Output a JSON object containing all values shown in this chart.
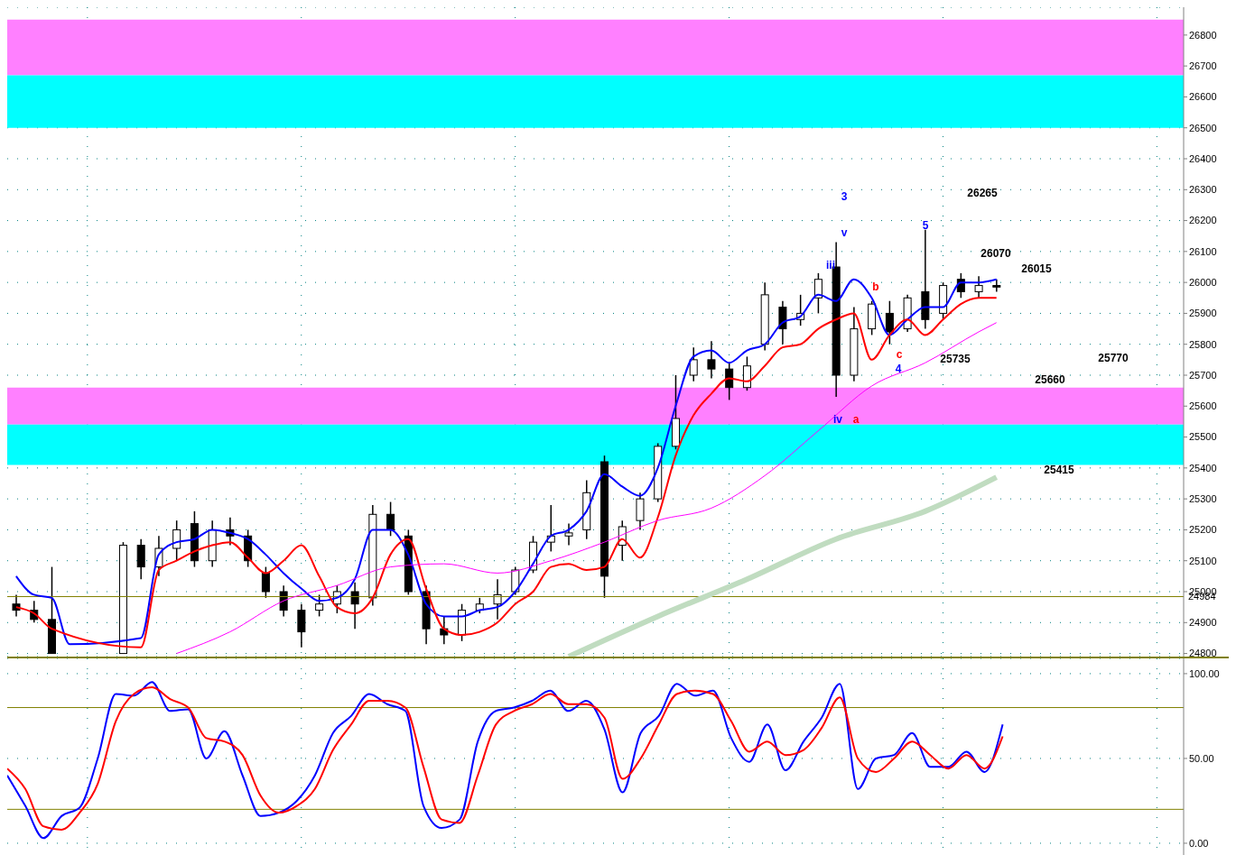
{
  "chart_data": [
    {
      "type": "candlestick",
      "categories": [
        null,
        null,
        null,
        null,
        null,
        null,
        null,
        null,
        null,
        null,
        null,
        null,
        null,
        null,
        null,
        null,
        null,
        null,
        null,
        null,
        null,
        null,
        null,
        null,
        null,
        null,
        null,
        null,
        null,
        null,
        null,
        null,
        null,
        null,
        null,
        null,
        null,
        null,
        null,
        null,
        null,
        null,
        null,
        null,
        null,
        null,
        null,
        null,
        null,
        null,
        null,
        null,
        null,
        null,
        null,
        null,
        null,
        null,
        null,
        null,
        null,
        null,
        null,
        null,
        null,
        null
      ],
      "ohlc": [
        [
          24960,
          24990,
          24920,
          24940
        ],
        [
          24940,
          24970,
          24900,
          24910
        ],
        [
          24910,
          25080,
          24800,
          24800
        ],
        null,
        null,
        null,
        [
          24800,
          25160,
          24800,
          25150
        ],
        [
          25150,
          25170,
          25040,
          25080
        ],
        [
          25080,
          25180,
          25050,
          25140
        ],
        [
          25140,
          25230,
          25100,
          25200
        ],
        [
          25220,
          25260,
          25080,
          25100
        ],
        [
          25100,
          25230,
          25080,
          25200
        ],
        [
          25200,
          25240,
          25150,
          25180
        ],
        [
          25180,
          25200,
          25080,
          25100
        ],
        [
          25060,
          25080,
          24980,
          25000
        ],
        [
          25000,
          25020,
          24920,
          24940
        ],
        [
          24940,
          24960,
          24820,
          24870
        ],
        [
          24940,
          24990,
          24920,
          24960
        ],
        [
          24960,
          25020,
          24930,
          25000
        ],
        [
          25000,
          25030,
          24880,
          24960
        ],
        [
          24980,
          25280,
          24955,
          25250
        ],
        [
          25250,
          25290,
          25180,
          25200
        ],
        [
          25180,
          25200,
          24990,
          25000
        ],
        [
          25000,
          25020,
          24830,
          24880
        ],
        [
          24880,
          24920,
          24830,
          24860
        ],
        [
          24860,
          24960,
          24840,
          24940
        ],
        [
          24940,
          24980,
          24930,
          24960
        ],
        [
          24960,
          25040,
          24910,
          24990
        ],
        [
          25000,
          25080,
          24990,
          25070
        ],
        [
          25070,
          25180,
          25060,
          25160
        ],
        [
          25160,
          25280,
          25130,
          25180
        ],
        [
          25180,
          25220,
          25150,
          25190
        ],
        [
          25200,
          25360,
          25170,
          25320
        ],
        [
          25420,
          25440,
          24980,
          25050
        ],
        [
          25150,
          25230,
          25100,
          25210
        ],
        [
          25230,
          25320,
          25200,
          25300
        ],
        [
          25300,
          25480,
          25290,
          25470
        ],
        [
          25470,
          25700,
          25460,
          25560
        ],
        [
          25700,
          25790,
          25680,
          25750
        ],
        [
          25750,
          25810,
          25690,
          25720
        ],
        [
          25720,
          25740,
          25620,
          25660
        ],
        [
          25660,
          25760,
          25650,
          25730
        ],
        [
          25800,
          26000,
          25780,
          25960
        ],
        [
          25920,
          25940,
          25800,
          25850
        ],
        [
          25880,
          25960,
          25860,
          25900
        ],
        [
          25950,
          26030,
          25900,
          26010
        ],
        [
          26050,
          26130,
          25630,
          25700
        ],
        [
          25700,
          25920,
          25680,
          25850
        ],
        [
          25850,
          25940,
          25830,
          25930
        ],
        [
          25900,
          25940,
          25800,
          25840
        ],
        [
          25850,
          25960,
          25840,
          25950
        ],
        [
          25970,
          26170,
          25850,
          25880
        ],
        [
          25900,
          26000,
          25880,
          25990
        ],
        [
          26010,
          26030,
          25950,
          25970
        ],
        [
          25970,
          26020,
          25950,
          25990
        ],
        [
          25990,
          26010,
          25970,
          25985
        ],
        null,
        null,
        null,
        null,
        null,
        null,
        null,
        null,
        null,
        null
      ],
      "series": [
        {
          "type": "line",
          "color": "#0000ff",
          "values": [
            25050,
            24990,
            24980,
            24830,
            null,
            null,
            null,
            24850,
            25120,
            25160,
            25170,
            25200,
            25190,
            25170,
            25120,
            25060,
            25010,
            24970,
            24980,
            25040,
            25200,
            25200,
            25120,
            24960,
            24920,
            24920,
            24940,
            24950,
            25000,
            25090,
            25180,
            25200,
            25260,
            25380,
            25340,
            25310,
            25400,
            25600,
            25760,
            25780,
            25740,
            25780,
            25800,
            25870,
            25890,
            25960,
            25940,
            26010,
            25950,
            25830,
            25880,
            25920,
            25920,
            26000,
            26000,
            26010,
            null,
            null,
            null,
            null,
            null,
            null,
            null,
            null,
            null,
            null
          ]
        },
        {
          "type": "line",
          "color": "#ff0000",
          "values": [
            24950,
            24930,
            24880,
            null,
            null,
            null,
            null,
            24820,
            25070,
            25100,
            25130,
            25150,
            25160,
            25110,
            25060,
            25100,
            25150,
            25050,
            24950,
            24930,
            24980,
            25120,
            25170,
            25010,
            24880,
            24860,
            24870,
            24900,
            24960,
            25000,
            25080,
            25090,
            25070,
            25080,
            25170,
            25110,
            25240,
            25440,
            25570,
            25640,
            25690,
            25680,
            25730,
            25790,
            25800,
            25850,
            25880,
            25900,
            25750,
            25830,
            25880,
            25830,
            25880,
            25930,
            25950,
            25950,
            null,
            null,
            null,
            null,
            null,
            null,
            null,
            null,
            null,
            null
          ]
        },
        {
          "type": "line",
          "color": "#ff00ff",
          "values": [
            null,
            null,
            null,
            null,
            null,
            null,
            null,
            null,
            null,
            24800,
            null,
            null,
            24870,
            null,
            null,
            24970,
            null,
            null,
            25020,
            null,
            null,
            25080,
            null,
            null,
            25090,
            null,
            null,
            25060,
            null,
            null,
            25100,
            null,
            null,
            25160,
            null,
            null,
            25230,
            null,
            null,
            25270,
            null,
            null,
            25375,
            null,
            null,
            25520,
            null,
            null,
            25665,
            null,
            null,
            25740,
            null,
            null,
            25840,
            25870,
            null,
            null,
            null,
            null,
            null,
            null,
            null,
            null,
            null,
            null
          ]
        },
        {
          "type": "line",
          "color": "#c0dcc0",
          "values": [
            null,
            null,
            null,
            null,
            null,
            null,
            null,
            null,
            null,
            null,
            null,
            null,
            null,
            null,
            null,
            null,
            null,
            null,
            null,
            null,
            null,
            null,
            null,
            null,
            null,
            null,
            null,
            null,
            null,
            null,
            null,
            24790,
            null,
            null,
            null,
            null,
            24920,
            null,
            null,
            null,
            null,
            25040,
            null,
            null,
            null,
            null,
            25170,
            null,
            null,
            null,
            null,
            25260,
            null,
            null,
            null,
            25370,
            null,
            null,
            null,
            null,
            null,
            null,
            null,
            null,
            null,
            null
          ]
        }
      ],
      "bands": [
        {
          "axis": "y",
          "from": 26670,
          "to": 26850,
          "color": "#ff80ff"
        },
        {
          "axis": "y",
          "from": 26500,
          "to": 26670,
          "color": "#00ffff"
        },
        {
          "axis": "y",
          "from": 25540,
          "to": 25660,
          "color": "#ff80ff"
        },
        {
          "axis": "y",
          "from": 25410,
          "to": 25540,
          "color": "#00ffff"
        }
      ],
      "ref_lines": [
        {
          "axis": "y",
          "value": 24984,
          "label": "24984",
          "color": "#808000"
        }
      ],
      "annotations": [
        "26265",
        "26070",
        "26015",
        "25770",
        "25735",
        "25660",
        "25415",
        "3",
        "v",
        "iii",
        "b",
        "c",
        "4",
        "5",
        "iv",
        "a"
      ],
      "ylim": [
        24790,
        26890
      ],
      "yticks": [
        24800,
        24900,
        25000,
        25100,
        25200,
        25300,
        25400,
        25500,
        25600,
        25700,
        25800,
        25900,
        26000,
        26100,
        26200,
        26300,
        26400,
        26500,
        26600,
        26700,
        26800
      ],
      "grid": true,
      "tick_labels": "y"
    },
    {
      "type": "line",
      "categories": [
        null,
        null,
        null,
        null,
        null,
        null,
        null,
        null,
        null,
        null,
        null,
        null,
        null,
        null,
        null,
        null,
        null,
        null,
        null,
        null,
        null,
        null,
        null,
        null,
        null,
        null,
        null,
        null,
        null,
        null,
        null,
        null,
        null,
        null,
        null,
        null,
        null,
        null,
        null,
        null,
        null,
        null,
        null,
        null,
        null,
        null,
        null,
        null,
        null,
        null,
        null,
        null,
        null,
        null,
        null,
        null,
        null,
        null,
        null,
        null,
        null,
        null,
        null,
        null,
        null,
        null
      ],
      "series": [
        {
          "color": "#0000ff",
          "values": [
            40,
            22,
            3,
            16,
            21,
            50,
            88,
            87,
            95,
            78,
            79,
            50,
            66,
            40,
            16,
            18,
            25,
            40,
            65,
            75,
            88,
            82,
            78,
            22,
            9,
            14,
            60,
            78,
            80,
            84,
            90,
            78,
            84,
            67,
            30,
            65,
            75,
            94,
            87,
            90,
            62,
            48,
            70,
            43,
            60,
            74,
            94,
            32,
            50,
            52,
            65,
            45,
            45,
            54,
            42,
            70,
            null,
            null,
            null,
            null,
            null,
            null,
            null,
            null,
            null,
            null
          ]
        },
        {
          "color": "#ff0000",
          "values": [
            44,
            32,
            10,
            8,
            18,
            35,
            72,
            88,
            92,
            85,
            80,
            62,
            60,
            52,
            28,
            18,
            22,
            32,
            55,
            70,
            84,
            84,
            80,
            45,
            14,
            12,
            40,
            70,
            78,
            82,
            88,
            82,
            82,
            74,
            38,
            50,
            70,
            88,
            90,
            88,
            72,
            54,
            60,
            52,
            55,
            68,
            86,
            50,
            42,
            50,
            60,
            52,
            44,
            52,
            44,
            63,
            null,
            null,
            null,
            null,
            null,
            null,
            null,
            null,
            null,
            null
          ]
        }
      ],
      "ref_lines": [
        {
          "axis": "y",
          "value": 80,
          "color": "#808000"
        },
        {
          "axis": "y",
          "value": 20,
          "color": "#808000"
        }
      ],
      "ylim": [
        -8,
        109
      ],
      "yticks": [
        {
          "value": 100,
          "label": "100.00"
        },
        {
          "value": 50,
          "label": "50.00"
        },
        {
          "value": 0,
          "label": "0.00"
        }
      ],
      "grid": true,
      "tick_labels": "y"
    }
  ]
}
